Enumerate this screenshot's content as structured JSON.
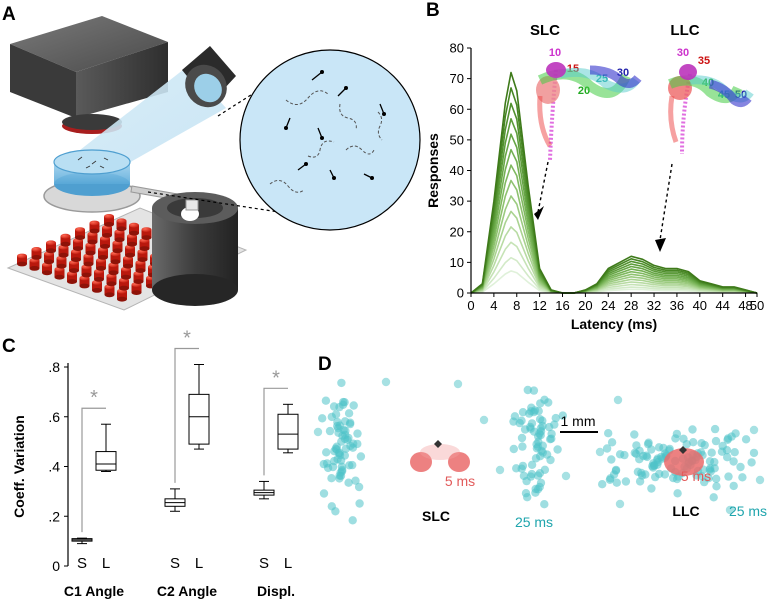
{
  "panel_a": {
    "letter": "A"
  },
  "panel_b": {
    "letter": "B",
    "slc_title": "SLC",
    "llc_title": "LLC",
    "slc_labels": [
      {
        "text": "10",
        "color": "#cc33cc"
      },
      {
        "text": "15",
        "color": "#cc1111"
      },
      {
        "text": "20",
        "color": "#22aa22"
      },
      {
        "text": "25",
        "color": "#22aaaa"
      },
      {
        "text": "30",
        "color": "#2222aa"
      }
    ],
    "llc_labels": [
      {
        "text": "30",
        "color": "#cc33cc"
      },
      {
        "text": "35",
        "color": "#cc1111"
      },
      {
        "text": "40",
        "color": "#22aa22"
      },
      {
        "text": "45",
        "color": "#22aaaa"
      },
      {
        "text": "50",
        "color": "#2222aa"
      }
    ]
  },
  "panel_c": {
    "letter": "C"
  },
  "panel_d": {
    "letter": "D",
    "scale_label": "1 mm",
    "slc_label": "SLC",
    "llc_label": "LLC",
    "t5_label": "5 ms",
    "t25_label": "25 ms",
    "red": "#e85a5a",
    "cyan": "#4fc3c8"
  },
  "chart_data": [
    {
      "type": "line",
      "xlabel": "Latency (ms)",
      "ylabel": "Responses",
      "xlim": [
        0,
        50
      ],
      "ylim": [
        0,
        80
      ],
      "xticks": [
        0,
        4,
        8,
        12,
        16,
        20,
        24,
        28,
        32,
        36,
        40,
        44,
        48,
        50
      ],
      "yticks": [
        0,
        10,
        20,
        30,
        40,
        50,
        60,
        70,
        80
      ],
      "x": [
        0,
        2,
        4,
        6,
        7,
        8,
        10,
        12,
        14,
        16,
        18,
        20,
        22,
        24,
        26,
        28,
        30,
        32,
        34,
        36,
        38,
        40,
        42,
        44,
        46,
        48,
        50
      ],
      "profile_max": [
        0,
        3,
        30,
        62,
        72,
        66,
        35,
        8,
        1,
        0,
        0,
        1,
        3,
        8,
        10,
        12,
        11,
        9,
        8,
        8,
        7,
        4,
        3,
        2,
        2,
        1,
        0
      ],
      "scales": [
        1.0,
        0.93,
        0.86,
        0.79,
        0.72,
        0.65,
        0.58,
        0.51,
        0.44,
        0.37,
        0.3,
        0.23,
        0.16,
        0.1
      ],
      "colors": [
        "#3e7a1a",
        "#478624",
        "#51912e",
        "#5c9c3a",
        "#67a646",
        "#73b052",
        "#80b960",
        "#8ec26f",
        "#9ccb80",
        "#aad391",
        "#b8dba3",
        "#c6e3b6",
        "#d3eac8",
        "#e0f1da"
      ]
    },
    {
      "type": "box",
      "ylabel": "Coeff. Variation",
      "ylim": [
        0,
        0.8
      ],
      "yticks": [
        0,
        0.2,
        0.4,
        0.6,
        0.8
      ],
      "ytick_labels": [
        "0",
        ".2",
        ".4",
        ".6",
        ".8"
      ],
      "groups": [
        {
          "name": "C1 Angle",
          "sig": "*",
          "boxes": [
            {
              "label": "S",
              "min": 0.09,
              "q1": 0.1,
              "median": 0.105,
              "q3": 0.11,
              "max": 0.112
            },
            {
              "label": "L",
              "min": 0.38,
              "q1": 0.385,
              "median": 0.41,
              "q3": 0.46,
              "max": 0.57
            }
          ]
        },
        {
          "name": "C2 Angle",
          "sig": "*",
          "boxes": [
            {
              "label": "S",
              "min": 0.22,
              "q1": 0.24,
              "median": 0.255,
              "q3": 0.27,
              "max": 0.31
            },
            {
              "label": "L",
              "min": 0.47,
              "q1": 0.49,
              "median": 0.6,
              "q3": 0.69,
              "max": 0.81
            }
          ]
        },
        {
          "name": "Displ.",
          "sig": "*",
          "boxes": [
            {
              "label": "S",
              "min": 0.27,
              "q1": 0.285,
              "median": 0.295,
              "q3": 0.305,
              "max": 0.34
            },
            {
              "label": "L",
              "min": 0.455,
              "q1": 0.47,
              "median": 0.53,
              "q3": 0.61,
              "max": 0.65
            }
          ]
        }
      ]
    }
  ]
}
